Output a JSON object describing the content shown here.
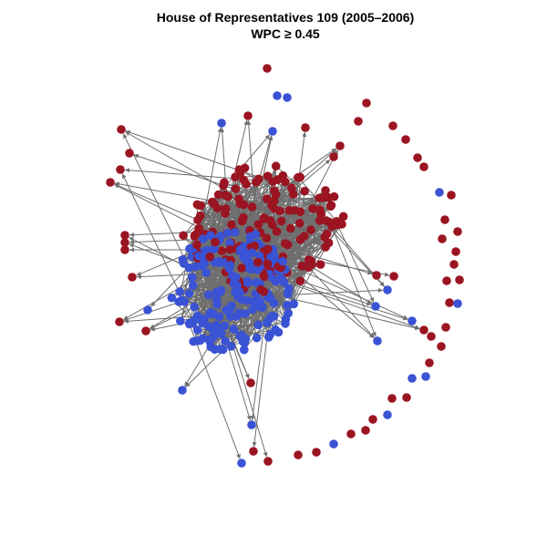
{
  "title": {
    "line1": "House of Representatives 109 (2005–2006)",
    "line2": "WPC ≥ 0.45"
  }
}
